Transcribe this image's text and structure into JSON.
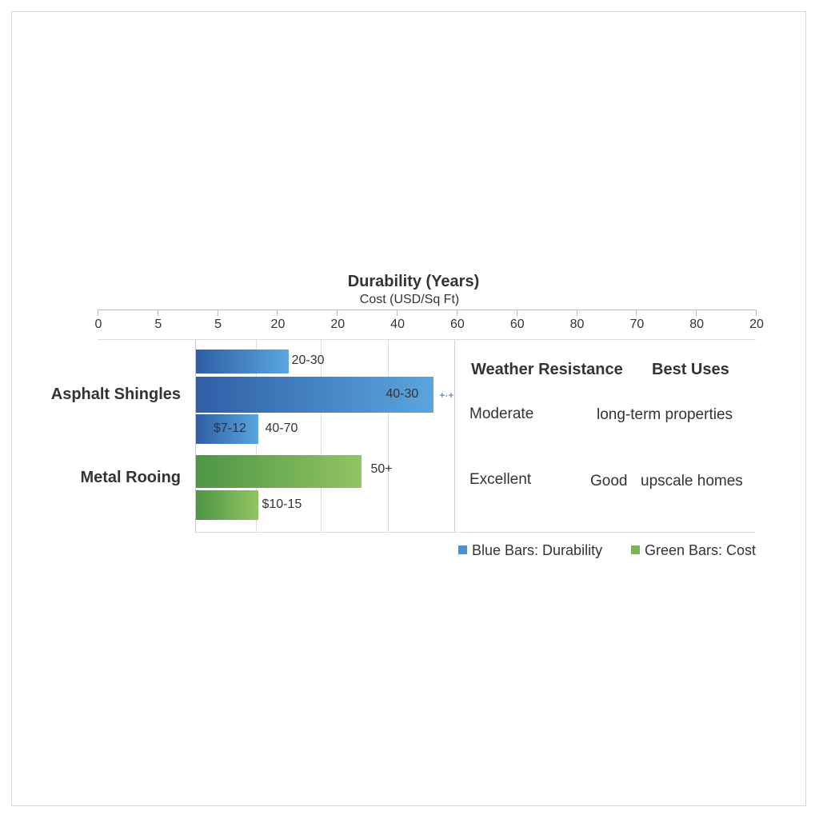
{
  "chart_data": {
    "type": "bar",
    "orientation": "horizontal",
    "title": "Durability (Years)",
    "subtitle": "Cost (USD/Sq Ft)",
    "x_ticks": [
      "0",
      "5",
      "5",
      "20",
      "20",
      "40",
      "60",
      "60",
      "80",
      "70",
      "80",
      "20"
    ],
    "categories": [
      "Asphalt Shingles",
      "Metal Rooing"
    ],
    "grid": true,
    "bars": [
      {
        "category": "Asphalt Shingles",
        "color": "blue",
        "value": 14,
        "label": "20-30"
      },
      {
        "category": "Asphalt Shingles",
        "color": "blue",
        "value": 36,
        "label": "40-30",
        "annotation": "+·+"
      },
      {
        "category": "Asphalt Shingles",
        "color": "blue",
        "value": 9.5,
        "label": "$7-12",
        "extra_label": "40-70"
      },
      {
        "category": "Metal Rooing",
        "color": "green",
        "value": 25,
        "label": "50+"
      },
      {
        "category": "Metal Rooing",
        "color": "green",
        "value": 9.5,
        "label": "$10-15"
      }
    ],
    "table": {
      "headers": [
        "Weather Resistance",
        "Best Uses"
      ],
      "rows": [
        {
          "weather": "Moderate",
          "rating": "",
          "uses": "long-term properties"
        },
        {
          "weather": "Excellent",
          "rating": "Good",
          "uses": "upscale homes"
        }
      ]
    },
    "legend": [
      {
        "label": "Blue Bars: Durability",
        "color": "#4f8fcf"
      },
      {
        "label": "Green Bars: Cost",
        "color": "#7ab55c"
      }
    ],
    "legend_position": "bottom-right"
  }
}
